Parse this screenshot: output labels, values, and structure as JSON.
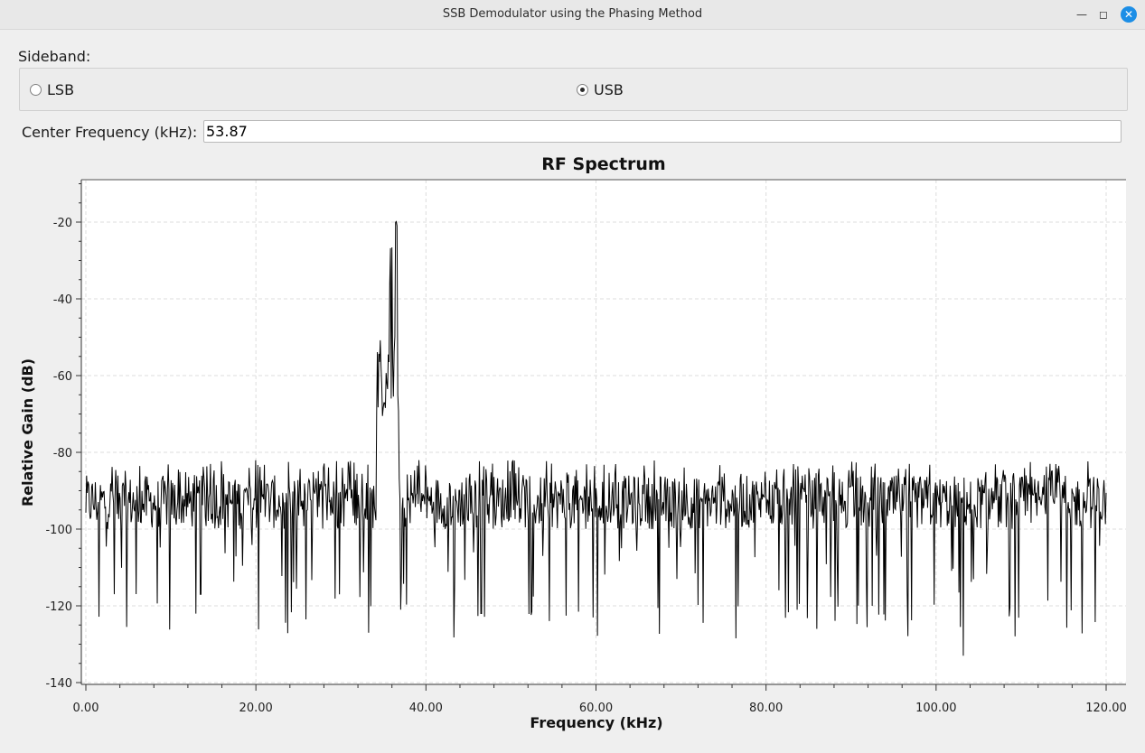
{
  "window": {
    "title": "SSB Demodulator using the Phasing Method",
    "min_icon": "minimize-icon",
    "max_icon": "maximize-icon",
    "close_icon": "close-icon"
  },
  "sideband": {
    "label": "Sideband:",
    "options": [
      {
        "label": "LSB",
        "selected": false
      },
      {
        "label": "USB",
        "selected": true
      }
    ]
  },
  "center_frequency": {
    "label": "Center Frequency (kHz):",
    "value": "53.87"
  },
  "chart_data": {
    "type": "line",
    "title": "RF Spectrum",
    "xlabel": "Frequency (kHz)",
    "ylabel": "Relative Gain (dB)",
    "xlim": [
      0,
      120
    ],
    "ylim": [
      -140,
      -10
    ],
    "xticks": [
      "0.00",
      "20.00",
      "40.00",
      "60.00",
      "80.00",
      "100.00",
      "120.00"
    ],
    "yticks": [
      "-20",
      "-40",
      "-60",
      "-80",
      "-100",
      "-120",
      "-140"
    ],
    "grid": true,
    "series": [
      {
        "color": "#000000",
        "noise_floor_db": -93,
        "noise_min_db": -118,
        "noise_max_db": -82,
        "signal_band_khz": [
          34.2,
          36.8
        ],
        "signal_peak_db": -23,
        "signal_typical_db": -60,
        "notable_dips": [
          {
            "x": 37.0,
            "y": -121
          },
          {
            "x": 46.5,
            "y": -122
          },
          {
            "x": 86.0,
            "y": -126
          },
          {
            "x": 103.2,
            "y": -133
          },
          {
            "x": 13.5,
            "y": -117
          },
          {
            "x": 29.8,
            "y": -117
          },
          {
            "x": 92.5,
            "y": -120
          }
        ]
      }
    ]
  }
}
